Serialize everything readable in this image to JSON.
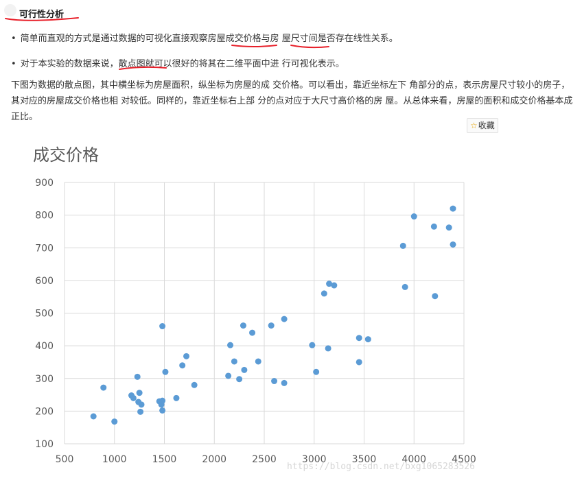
{
  "heading": "可行性分析",
  "bullets": [
    {
      "symbol": "•",
      "text": "简单而直观的方式是通过数据的可视化直接观察房屋成交价格与房 屋尺寸间是否存在线性关系。"
    },
    {
      "symbol": "•",
      "text": "对于本实验的数据来说，散点图就可以很好的将其在二维平面中进 行可视化表示。"
    }
  ],
  "paragraph": "下图为数据的散点图，其中横坐标为房屋面积，纵坐标为房屋的成 交价格。可以看出，靠近坐标左下 角部分的点，表示房屋尺寸较小的房子，其对应的房屋成交价格也相 对较低。同样的，靠近坐标右上部 分的点对应于大尺寸高价格的房 屋。从总体来看，房屋的面积和成交价格基本成正比。",
  "favorite": {
    "icon": "star-icon",
    "label": "收藏"
  },
  "watermark": "https://blog.csdn.net/bxg1065283526",
  "colors": {
    "point": "#5b9bd5",
    "annotation": "#e8202a"
  },
  "chart_data": {
    "type": "scatter",
    "title": "成交价格",
    "xlim": [
      500,
      4500
    ],
    "ylim": [
      100,
      900
    ],
    "xticks": [
      "500",
      "1000",
      "1500",
      "2000",
      "2500",
      "3000",
      "3500",
      "4000",
      "4500"
    ],
    "yticks": [
      "100",
      "200",
      "300",
      "400",
      "500",
      "600",
      "700",
      "800",
      "900"
    ],
    "grid": true,
    "points": [
      [
        790,
        184
      ],
      [
        890,
        272
      ],
      [
        1000,
        168
      ],
      [
        1170,
        248
      ],
      [
        1190,
        240
      ],
      [
        1230,
        305
      ],
      [
        1240,
        228
      ],
      [
        1250,
        256
      ],
      [
        1260,
        198
      ],
      [
        1270,
        220
      ],
      [
        1450,
        230
      ],
      [
        1470,
        220
      ],
      [
        1480,
        232
      ],
      [
        1480,
        202
      ],
      [
        1480,
        460
      ],
      [
        1510,
        320
      ],
      [
        1620,
        240
      ],
      [
        1680,
        340
      ],
      [
        1720,
        368
      ],
      [
        1800,
        280
      ],
      [
        2140,
        308
      ],
      [
        2160,
        402
      ],
      [
        2200,
        352
      ],
      [
        2250,
        298
      ],
      [
        2290,
        462
      ],
      [
        2300,
        326
      ],
      [
        2380,
        440
      ],
      [
        2440,
        352
      ],
      [
        2570,
        462
      ],
      [
        2600,
        292
      ],
      [
        2700,
        286
      ],
      [
        2700,
        482
      ],
      [
        2980,
        402
      ],
      [
        3020,
        320
      ],
      [
        3100,
        560
      ],
      [
        3140,
        392
      ],
      [
        3150,
        590
      ],
      [
        3200,
        585
      ],
      [
        3450,
        424
      ],
      [
        3450,
        350
      ],
      [
        3540,
        420
      ],
      [
        3890,
        706
      ],
      [
        3910,
        580
      ],
      [
        4000,
        796
      ],
      [
        4200,
        765
      ],
      [
        4210,
        552
      ],
      [
        4350,
        762
      ],
      [
        4390,
        820
      ],
      [
        4390,
        710
      ]
    ]
  }
}
